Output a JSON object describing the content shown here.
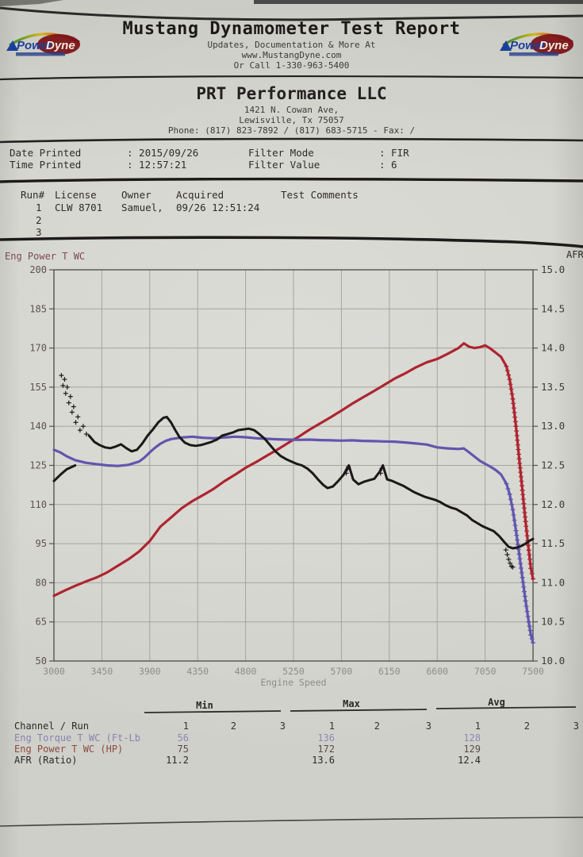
{
  "header": {
    "title": "Mustang Dynamometer Test Report",
    "sub1": "Updates, Documentation & More At",
    "sub2": "www.MustangDyne.com",
    "sub3": "Or Call 1-330-963-5400",
    "logo": {
      "power": "Power",
      "dyne": "Dyne"
    }
  },
  "company": {
    "name": "PRT Performance LLC",
    "addr1": "1421 N. Cowan Ave,",
    "addr2": "Lewisville, Tx  75057",
    "phone": "Phone: (817) 823-7892 / (817) 683-5715 - Fax:  /"
  },
  "print_info": {
    "date_label": "Date Printed",
    "date_value": ": 2015/09/26",
    "time_label": "Time Printed",
    "time_value": ": 12:57:21",
    "filter_mode_label": "Filter Mode",
    "filter_mode_value": ": FIR",
    "filter_value_label": "Filter Value",
    "filter_value_value": ": 6"
  },
  "runs": {
    "col_run": "Run#",
    "col_license": "License",
    "col_owner": "Owner",
    "col_acquired": "Acquired",
    "col_comments": "Test Comments",
    "rows": [
      {
        "num": "1",
        "license": "CLW 8701",
        "owner": "Samuel,",
        "acquired": "09/26 12:51:24"
      },
      {
        "num": "2",
        "license": "",
        "owner": "",
        "acquired": ""
      },
      {
        "num": "3",
        "license": "",
        "owner": "",
        "acquired": ""
      }
    ]
  },
  "chart_data": {
    "type": "line",
    "title": "",
    "xlabel": "Engine Speed",
    "x_range": [
      3000,
      7500
    ],
    "x_ticks": [
      "3000",
      "3450",
      "3900",
      "4350",
      "4800",
      "5250",
      "5700",
      "6150",
      "6600",
      "7050",
      "7500"
    ],
    "grid": true,
    "left_axis": {
      "label": "Eng Power T WC",
      "range": [
        50,
        200
      ],
      "ticks": [
        "200",
        "185",
        "170",
        "155",
        "140",
        "125",
        "110",
        "95",
        "80",
        "65",
        "50"
      ]
    },
    "right_axis": {
      "label": "AFR",
      "range": [
        10,
        15
      ],
      "ticks": [
        "15.0",
        "14.5",
        "14.0",
        "13.5",
        "13.0",
        "12.5",
        "12.0",
        "11.5",
        "11.0",
        "10.5",
        "10.0"
      ]
    },
    "series": [
      {
        "name": "Eng Power T WC (HP)",
        "axis": "left",
        "color": "#ad2530",
        "width": 3.2,
        "plus_from": 7250,
        "segments": [
          [
            [
              3000,
              75
            ],
            [
              3100,
              77
            ],
            [
              3200,
              78.8
            ],
            [
              3300,
              80.5
            ],
            [
              3400,
              82
            ],
            [
              3500,
              84
            ],
            [
              3600,
              86.5
            ],
            [
              3700,
              89
            ],
            [
              3800,
              92
            ],
            [
              3900,
              96
            ],
            [
              4000,
              101.5
            ],
            [
              4100,
              105
            ],
            [
              4200,
              108.6
            ],
            [
              4300,
              111.3
            ],
            [
              4400,
              113.6
            ],
            [
              4500,
              116
            ],
            [
              4600,
              118.9
            ],
            [
              4700,
              121.4
            ],
            [
              4800,
              124.1
            ],
            [
              4900,
              126.3
            ],
            [
              5000,
              128.7
            ],
            [
              5100,
              131.1
            ],
            [
              5200,
              133.6
            ],
            [
              5300,
              136
            ],
            [
              5400,
              138.7
            ],
            [
              5500,
              141.1
            ],
            [
              5600,
              143.5
            ],
            [
              5700,
              146
            ],
            [
              5800,
              148.6
            ],
            [
              5900,
              151
            ],
            [
              6000,
              153.4
            ],
            [
              6100,
              155.8
            ],
            [
              6200,
              158.3
            ],
            [
              6300,
              160.3
            ],
            [
              6400,
              162.6
            ],
            [
              6500,
              164.5
            ],
            [
              6600,
              165.8
            ],
            [
              6700,
              167.8
            ],
            [
              6800,
              170
            ],
            [
              6850,
              171.8
            ],
            [
              6900,
              170.5
            ],
            [
              6950,
              170
            ],
            [
              7000,
              170.3
            ],
            [
              7050,
              171
            ],
            [
              7100,
              169.8
            ],
            [
              7150,
              168.2
            ],
            [
              7200,
              166.6
            ],
            [
              7250,
              163
            ],
            [
              7280,
              158
            ],
            [
              7310,
              150.5
            ],
            [
              7340,
              140
            ],
            [
              7370,
              127.5
            ],
            [
              7400,
              115.5
            ],
            [
              7430,
              103.5
            ],
            [
              7460,
              92.5
            ],
            [
              7480,
              85.5
            ],
            [
              7500,
              81.5
            ]
          ]
        ]
      },
      {
        "name": "Eng Torque T WC (Ft-Lb)",
        "axis": "left",
        "color": "#6156ae",
        "width": 3.2,
        "plus_from": 7250,
        "segments": [
          [
            [
              3000,
              131
            ],
            [
              3060,
              130
            ],
            [
              3120,
              128.5
            ],
            [
              3200,
              127
            ],
            [
              3300,
              126
            ],
            [
              3400,
              125.5
            ],
            [
              3500,
              125
            ],
            [
              3600,
              124.8
            ],
            [
              3700,
              125.2
            ],
            [
              3800,
              126.5
            ],
            [
              3850,
              128
            ],
            [
              3900,
              130
            ],
            [
              3950,
              131.8
            ],
            [
              4000,
              133.3
            ],
            [
              4050,
              134.4
            ],
            [
              4100,
              135.1
            ],
            [
              4200,
              135.7
            ],
            [
              4300,
              136
            ],
            [
              4400,
              135.6
            ],
            [
              4500,
              135.4
            ],
            [
              4600,
              135.7
            ],
            [
              4700,
              136
            ],
            [
              4800,
              135.8
            ],
            [
              4900,
              135.4
            ],
            [
              5000,
              135.2
            ],
            [
              5100,
              135
            ],
            [
              5200,
              134.9
            ],
            [
              5300,
              134.8
            ],
            [
              5400,
              134.9
            ],
            [
              5500,
              134.7
            ],
            [
              5600,
              134.6
            ],
            [
              5700,
              134.5
            ],
            [
              5800,
              134.6
            ],
            [
              5900,
              134.4
            ],
            [
              6000,
              134.3
            ],
            [
              6100,
              134.2
            ],
            [
              6200,
              134.1
            ],
            [
              6300,
              133.8
            ],
            [
              6400,
              133.4
            ],
            [
              6500,
              133
            ],
            [
              6600,
              131.9
            ],
            [
              6700,
              131.5
            ],
            [
              6800,
              131.3
            ],
            [
              6850,
              131.5
            ],
            [
              6900,
              130
            ],
            [
              7000,
              126.8
            ],
            [
              7050,
              125.6
            ],
            [
              7100,
              124.5
            ],
            [
              7150,
              123.2
            ],
            [
              7200,
              121.5
            ],
            [
              7250,
              118
            ],
            [
              7280,
              114
            ],
            [
              7310,
              108
            ],
            [
              7340,
              100
            ],
            [
              7370,
              91
            ],
            [
              7400,
              82
            ],
            [
              7430,
              73
            ],
            [
              7460,
              65
            ],
            [
              7480,
              60
            ],
            [
              7500,
              57
            ]
          ]
        ]
      },
      {
        "name": "AFR (Ratio)",
        "axis": "right",
        "color": "#1b1918",
        "width": 3,
        "segments": [
          [
            [
              3000,
              12.3
            ],
            [
              3060,
              12.38
            ],
            [
              3120,
              12.45
            ],
            [
              3200,
              12.5
            ]
          ],
          [
            [
              3330,
              12.88
            ],
            [
              3380,
              12.8
            ],
            [
              3430,
              12.76
            ],
            [
              3480,
              12.73
            ],
            [
              3530,
              12.72
            ],
            [
              3580,
              12.74
            ],
            [
              3630,
              12.77
            ],
            [
              3680,
              12.72
            ],
            [
              3730,
              12.68
            ],
            [
              3780,
              12.7
            ],
            [
              3830,
              12.78
            ],
            [
              3880,
              12.88
            ],
            [
              3930,
              12.96
            ],
            [
              3980,
              13.05
            ],
            [
              4030,
              13.11
            ],
            [
              4060,
              13.12
            ],
            [
              4100,
              13.05
            ],
            [
              4140,
              12.95
            ],
            [
              4180,
              12.86
            ],
            [
              4230,
              12.79
            ],
            [
              4280,
              12.76
            ],
            [
              4330,
              12.75
            ],
            [
              4380,
              12.76
            ],
            [
              4430,
              12.78
            ],
            [
              4480,
              12.8
            ],
            [
              4530,
              12.83
            ],
            [
              4580,
              12.88
            ],
            [
              4630,
              12.9
            ],
            [
              4680,
              12.92
            ],
            [
              4730,
              12.95
            ],
            [
              4780,
              12.96
            ],
            [
              4830,
              12.97
            ],
            [
              4880,
              12.95
            ],
            [
              4930,
              12.9
            ],
            [
              4980,
              12.84
            ],
            [
              5030,
              12.76
            ],
            [
              5080,
              12.68
            ],
            [
              5130,
              12.62
            ],
            [
              5180,
              12.58
            ],
            [
              5230,
              12.55
            ],
            [
              5280,
              12.52
            ],
            [
              5330,
              12.5
            ],
            [
              5380,
              12.46
            ],
            [
              5430,
              12.4
            ],
            [
              5480,
              12.32
            ],
            [
              5530,
              12.25
            ],
            [
              5570,
              12.21
            ],
            [
              5620,
              12.23
            ],
            [
              5670,
              12.3
            ],
            [
              5720,
              12.38
            ],
            [
              5770,
              12.5
            ],
            [
              5810,
              12.32
            ],
            [
              5860,
              12.26
            ],
            [
              5910,
              12.29
            ],
            [
              5960,
              12.31
            ],
            [
              6010,
              12.33
            ],
            [
              6060,
              12.42
            ],
            [
              6090,
              12.5
            ],
            [
              6130,
              12.32
            ],
            [
              6180,
              12.3
            ],
            [
              6230,
              12.27
            ],
            [
              6280,
              12.24
            ],
            [
              6330,
              12.2
            ],
            [
              6380,
              12.16
            ],
            [
              6430,
              12.13
            ],
            [
              6480,
              12.1
            ],
            [
              6530,
              12.08
            ],
            [
              6580,
              12.06
            ],
            [
              6630,
              12.03
            ],
            [
              6680,
              11.99
            ],
            [
              6730,
              11.96
            ],
            [
              6780,
              11.94
            ],
            [
              6830,
              11.9
            ],
            [
              6880,
              11.86
            ],
            [
              6930,
              11.8
            ],
            [
              6980,
              11.76
            ],
            [
              7030,
              11.72
            ],
            [
              7080,
              11.69
            ],
            [
              7130,
              11.66
            ],
            [
              7180,
              11.6
            ],
            [
              7230,
              11.52
            ],
            [
              7270,
              11.46
            ],
            [
              7310,
              11.44
            ],
            [
              7350,
              11.45
            ],
            [
              7390,
              11.47
            ],
            [
              7430,
              11.5
            ],
            [
              7470,
              11.54
            ],
            [
              7500,
              11.56
            ]
          ]
        ],
        "plus_markers": [
          [
            3070,
            13.65
          ],
          [
            3085,
            13.52
          ],
          [
            3100,
            13.6
          ],
          [
            3110,
            13.42
          ],
          [
            3125,
            13.5
          ],
          [
            3140,
            13.3
          ],
          [
            3155,
            13.38
          ],
          [
            3170,
            13.18
          ],
          [
            3185,
            13.25
          ],
          [
            3205,
            13.05
          ],
          [
            3225,
            13.12
          ],
          [
            3245,
            12.95
          ],
          [
            3275,
            13.0
          ],
          [
            3305,
            12.9
          ],
          [
            5745,
            12.4
          ],
          [
            5756,
            12.45
          ],
          [
            5765,
            12.48
          ],
          [
            6068,
            12.4
          ],
          [
            6080,
            12.46
          ],
          [
            7245,
            11.42
          ],
          [
            7258,
            11.36
          ],
          [
            7271,
            11.3
          ],
          [
            7284,
            11.25
          ],
          [
            7297,
            11.21
          ],
          [
            7310,
            11.2
          ]
        ]
      }
    ]
  },
  "summary": {
    "group_headers": [
      "Min",
      "Max",
      "Avg"
    ],
    "channel_header": "Channel / Run",
    "run_numbers": [
      "1",
      "2",
      "3",
      "1",
      "2",
      "3",
      "1",
      "2",
      "3"
    ],
    "rows": [
      {
        "label": "Eng Torque T WC (Ft-Lb",
        "label_color": "#8882b0",
        "value_color": "#8e88b4",
        "values": [
          "56",
          "",
          "",
          "136",
          "",
          "",
          "128",
          "",
          ""
        ]
      },
      {
        "label": "Eng Power T WC (HP)",
        "label_color": "#8b4a42",
        "value_color": "#55504b",
        "values": [
          "75",
          "",
          "",
          "172",
          "",
          "",
          "129",
          "",
          ""
        ]
      },
      {
        "label": "AFR (Ratio)",
        "label_color": "#2b2927",
        "value_color": "#2b2927",
        "values": [
          "11.2",
          "",
          "",
          "13.6",
          "",
          "",
          "12.4",
          "",
          ""
        ]
      }
    ]
  }
}
